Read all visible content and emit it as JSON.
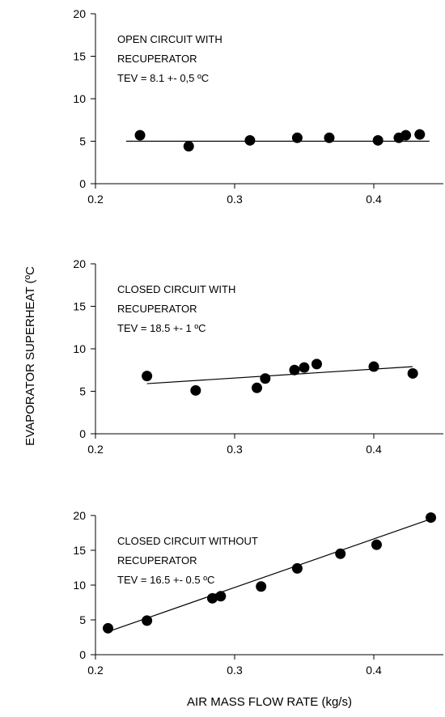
{
  "ylabel": "EVAPORATOR SUPERHEAT (ºC",
  "xlabel": "AIR MASS FLOW RATE (kg/s)",
  "chart_data": [
    {
      "type": "scatter",
      "annotation": [
        "OPEN CIRCUIT WITH",
        "RECUPERATOR",
        "TEV = 8.1 +- 0,5 ºC"
      ],
      "xlim": [
        0.2,
        0.45
      ],
      "ylim": [
        0,
        20
      ],
      "x_ticks": [
        0.2,
        0.3,
        0.4
      ],
      "x_tick_labels": [
        "0.2",
        "0.3",
        "0.4"
      ],
      "y_ticks": [
        0,
        5,
        10,
        15,
        20
      ],
      "y_tick_labels": [
        "0",
        "5",
        "10",
        "15",
        "20"
      ],
      "points": [
        [
          0.232,
          5.7
        ],
        [
          0.267,
          4.4
        ],
        [
          0.311,
          5.1
        ],
        [
          0.345,
          5.4
        ],
        [
          0.368,
          5.4
        ],
        [
          0.403,
          5.1
        ],
        [
          0.418,
          5.4
        ],
        [
          0.423,
          5.7
        ],
        [
          0.433,
          5.8
        ]
      ],
      "fit_line": [
        [
          0.222,
          5.0
        ],
        [
          0.44,
          5.0
        ]
      ]
    },
    {
      "type": "scatter",
      "annotation": [
        "CLOSED CIRCUIT WITH",
        "RECUPERATOR",
        "TEV = 18.5 +- 1 ºC"
      ],
      "xlim": [
        0.2,
        0.45
      ],
      "ylim": [
        0,
        20
      ],
      "x_ticks": [
        0.2,
        0.3,
        0.4
      ],
      "x_tick_labels": [
        "0.2",
        "0.3",
        "0.4"
      ],
      "y_ticks": [
        0,
        5,
        10,
        15,
        20
      ],
      "y_tick_labels": [
        "0",
        "5",
        "10",
        "15",
        "20"
      ],
      "points": [
        [
          0.237,
          6.8
        ],
        [
          0.272,
          5.1
        ],
        [
          0.316,
          5.4
        ],
        [
          0.322,
          6.5
        ],
        [
          0.343,
          7.5
        ],
        [
          0.35,
          7.8
        ],
        [
          0.359,
          8.2
        ],
        [
          0.4,
          7.9
        ],
        [
          0.428,
          7.1
        ]
      ],
      "fit_line": [
        [
          0.237,
          5.9
        ],
        [
          0.428,
          7.9
        ]
      ]
    },
    {
      "type": "scatter",
      "annotation": [
        "CLOSED CIRCUIT WITHOUT",
        "RECUPERATOR",
        "TEV = 16.5 +- 0.5 ºC"
      ],
      "xlim": [
        0.2,
        0.45
      ],
      "ylim": [
        0,
        20
      ],
      "x_ticks": [
        0.2,
        0.3,
        0.4
      ],
      "x_tick_labels": [
        "0.2",
        "0.3",
        "0.4"
      ],
      "y_ticks": [
        0,
        5,
        10,
        15,
        20
      ],
      "y_tick_labels": [
        "0",
        "5",
        "10",
        "15",
        "20"
      ],
      "points": [
        [
          0.209,
          3.8
        ],
        [
          0.237,
          4.9
        ],
        [
          0.284,
          8.1
        ],
        [
          0.29,
          8.4
        ],
        [
          0.319,
          9.8
        ],
        [
          0.345,
          12.4
        ],
        [
          0.376,
          14.5
        ],
        [
          0.402,
          15.8
        ],
        [
          0.441,
          19.7
        ]
      ],
      "fit_line": [
        [
          0.209,
          3.3
        ],
        [
          0.441,
          19.5
        ]
      ]
    }
  ]
}
